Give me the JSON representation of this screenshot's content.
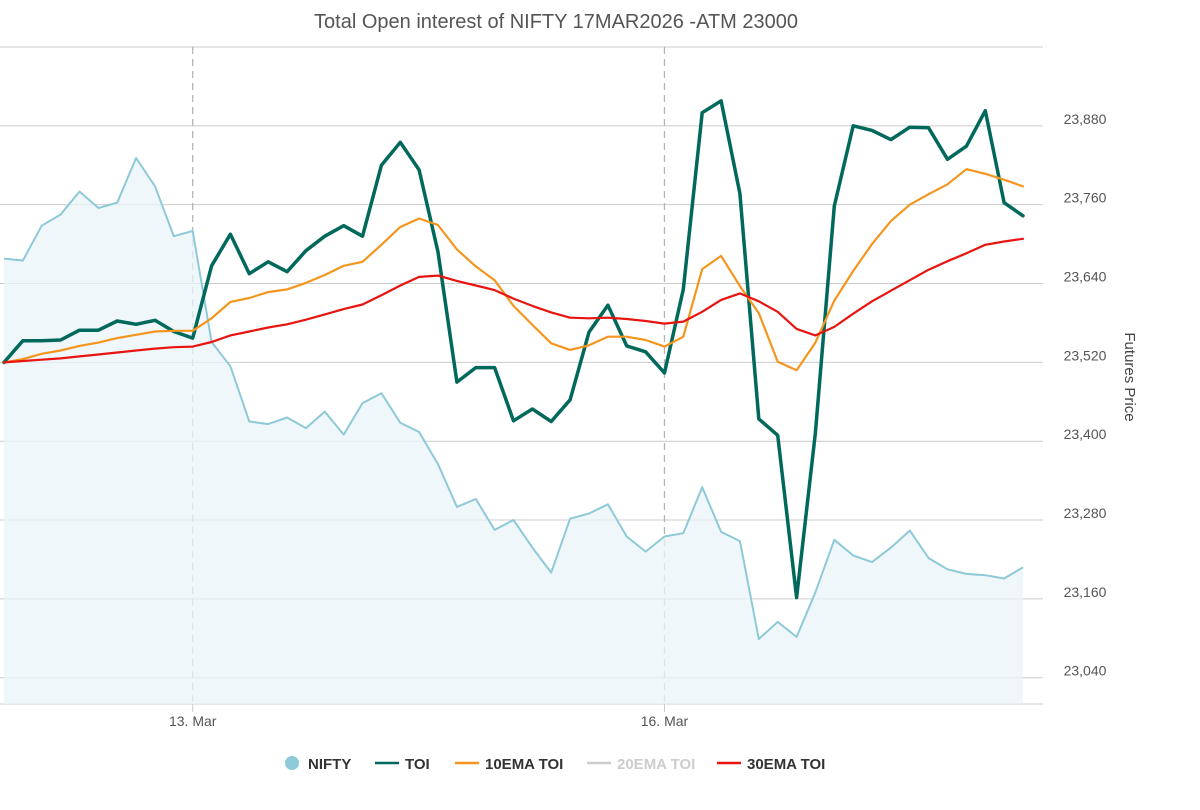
{
  "chart_data": {
    "type": "line",
    "title": "Total Open interest of NIFTY 17MAR2026 -ATM 23000",
    "y2label": "Futures Price",
    "xlabel": "",
    "ylabel": "",
    "x_ticks": [
      {
        "index": 10,
        "label": "13. Mar"
      },
      {
        "index": 35,
        "label": "16. Mar"
      }
    ],
    "y_axis_right": {
      "ticks": [
        "23,040",
        "23,160",
        "23,280",
        "23,400",
        "23,520",
        "23,640",
        "23,760",
        "23,880"
      ],
      "tick_values": [
        23040,
        23160,
        23280,
        23400,
        23520,
        23640,
        23760,
        23880
      ],
      "range": [
        23000,
        24000
      ]
    },
    "x_count": 55,
    "grid": true,
    "legend_position": "bottom",
    "series": [
      {
        "name": "NIFTY",
        "type": "area",
        "color": "#8ec9d8",
        "values": [
          23678,
          23675,
          23728,
          23745,
          23780,
          23755,
          23763,
          23831,
          23788,
          23712,
          23720,
          23551,
          23514,
          23430,
          23426,
          23436,
          23420,
          23445,
          23410,
          23458,
          23473,
          23428,
          23414,
          23365,
          23300,
          23312,
          23265,
          23280,
          23238,
          23200,
          23282,
          23290,
          23304,
          23255,
          23232,
          23255,
          23260,
          23330,
          23262,
          23248,
          23099,
          23125,
          23102,
          23170,
          23250,
          23226,
          23216,
          23238,
          23264,
          23222,
          23205,
          23198,
          23196,
          23191,
          23208
        ]
      },
      {
        "name": "TOI",
        "color": "#00695c",
        "values": [
          23520,
          23553,
          23553,
          23554,
          23569,
          23569,
          23583,
          23578,
          23584,
          23567,
          23557,
          23667,
          23715,
          23655,
          23673,
          23658,
          23690,
          23712,
          23728,
          23712,
          23820,
          23855,
          23813,
          23688,
          23490,
          23512,
          23512,
          23431,
          23449,
          23430,
          23463,
          23566,
          23607,
          23545,
          23536,
          23504,
          23631,
          23900,
          23918,
          23777,
          23434,
          23409,
          23162,
          23413,
          23758,
          23880,
          23873,
          23859,
          23878,
          23877,
          23829,
          23849,
          23903,
          23763,
          23743
        ]
      },
      {
        "name": "10EMA TOI",
        "color": "#f4961e",
        "values": [
          23520,
          23525,
          23533,
          23538,
          23545,
          23550,
          23557,
          23562,
          23567,
          23568,
          23568,
          23587,
          23612,
          23618,
          23627,
          23631,
          23641,
          23653,
          23667,
          23673,
          23699,
          23726,
          23739,
          23729,
          23692,
          23666,
          23645,
          23606,
          23577,
          23549,
          23539,
          23546,
          23559,
          23559,
          23554,
          23544,
          23559,
          23662,
          23682,
          23636,
          23595,
          23521,
          23508,
          23550,
          23614,
          23659,
          23700,
          23735,
          23760,
          23776,
          23791,
          23814,
          23807,
          23798,
          23788
        ]
      },
      {
        "name": "20EMA TOI",
        "color": "#cccccc",
        "hidden": true,
        "values": []
      },
      {
        "name": "30EMA TOI",
        "color": "#e8140f",
        "values": [
          23520,
          23522,
          23524,
          23526,
          23529,
          23532,
          23535,
          23538,
          23541,
          23543,
          23544,
          23551,
          23561,
          23567,
          23573,
          23578,
          23585,
          23593,
          23601,
          23608,
          23622,
          23637,
          23650,
          23652,
          23644,
          23637,
          23630,
          23617,
          23606,
          23596,
          23588,
          23587,
          23588,
          23586,
          23583,
          23579,
          23582,
          23597,
          23615,
          23625,
          23613,
          23597,
          23571,
          23561,
          23574,
          23594,
          23613,
          23629,
          23645,
          23661,
          23674,
          23686,
          23699,
          23704,
          23708
        ]
      }
    ]
  }
}
